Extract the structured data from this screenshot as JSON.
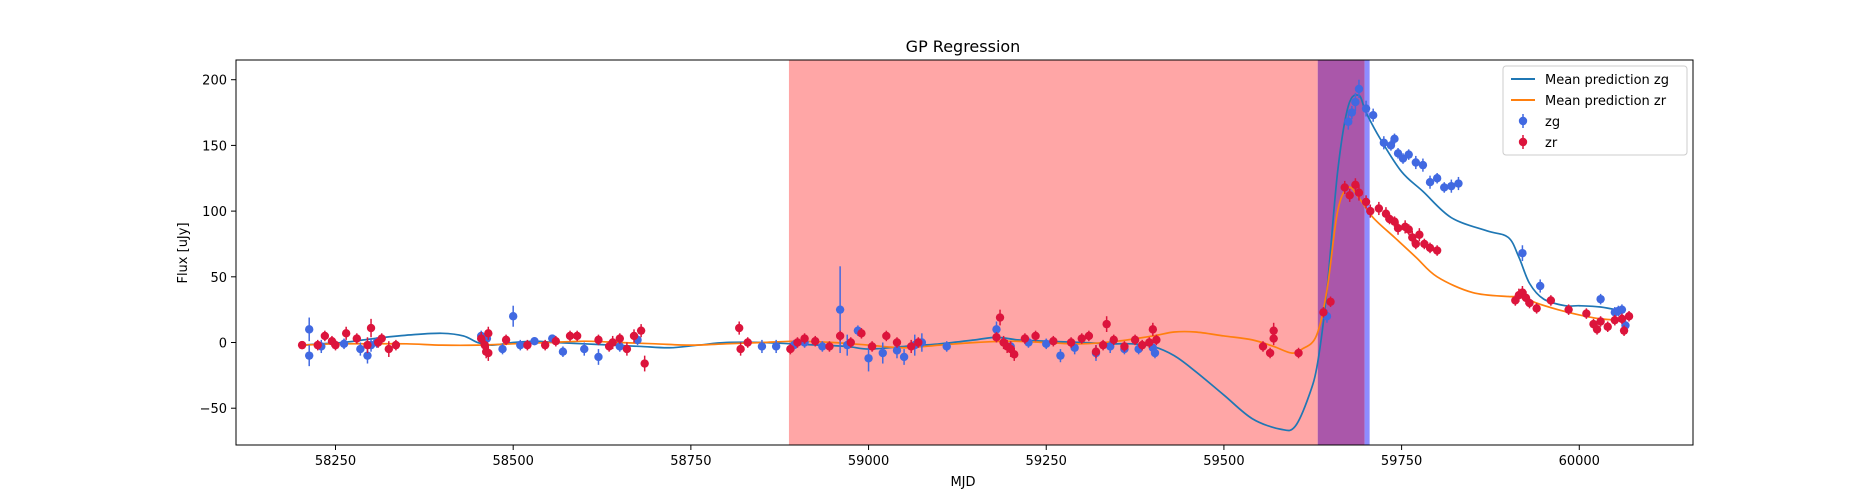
{
  "chart_data": {
    "type": "scatter",
    "title": "GP Regression",
    "xlabel": "MJD",
    "ylabel": "Flux [uJy]",
    "xlim": [
      58110,
      60160
    ],
    "ylim": [
      -78,
      215
    ],
    "xticks": [
      58250,
      58500,
      58750,
      59000,
      59250,
      59500,
      59750,
      60000
    ],
    "yticks": [
      -50,
      0,
      50,
      100,
      150,
      200
    ],
    "grid": false,
    "legend_position": "top-right",
    "shaded_regions": [
      {
        "x0": 58888,
        "x1": 59632,
        "color": "#ff0000",
        "alpha": 0.35
      },
      {
        "x0": 59632,
        "x1": 59698,
        "color": "#9b3a9b",
        "alpha": 0.85
      },
      {
        "x0": 59698,
        "x1": 59705,
        "color": "#7070ff",
        "alpha": 0.8
      }
    ],
    "lines": [
      {
        "name": "Mean prediction zg",
        "color": "#1f77b4",
        "x": [
          58203,
          58230,
          58260,
          58290,
          58320,
          58360,
          58400,
          58430,
          58450,
          58470,
          58500,
          58530,
          58560,
          58600,
          58640,
          58680,
          58720,
          58760,
          58800,
          58850,
          58890,
          58930,
          58970,
          59000,
          59050,
          59100,
          59150,
          59180,
          59210,
          59250,
          59300,
          59340,
          59370,
          59400,
          59430,
          59460,
          59500,
          59540,
          59580,
          59600,
          59620,
          59632,
          59645,
          59660,
          59675,
          59690,
          59700,
          59720,
          59750,
          59780,
          59820,
          59870,
          59900,
          59915,
          59930,
          59950,
          59980,
          60000,
          60030,
          60060
        ],
        "y": [
          -2,
          -1,
          0,
          2,
          4,
          6,
          7,
          5,
          0,
          -2,
          0,
          1,
          0,
          -1,
          -2,
          -3,
          -4,
          -2,
          0,
          0,
          -1,
          -2,
          -3,
          -5,
          -3,
          -1,
          2,
          4,
          2,
          1,
          0,
          -1,
          -1,
          -3,
          -10,
          -22,
          -40,
          -58,
          -66,
          -64,
          -40,
          -15,
          40,
          130,
          180,
          188,
          175,
          155,
          130,
          115,
          95,
          85,
          80,
          65,
          45,
          33,
          28,
          28,
          27,
          24
        ]
      },
      {
        "name": "Mean prediction zr",
        "color": "#ff7f0e",
        "x": [
          58203,
          58250,
          58300,
          58350,
          58400,
          58450,
          58500,
          58550,
          58600,
          58650,
          58700,
          58750,
          58800,
          58850,
          58900,
          58950,
          59000,
          59050,
          59100,
          59150,
          59200,
          59250,
          59300,
          59350,
          59400,
          59430,
          59460,
          59500,
          59540,
          59570,
          59595,
          59610,
          59630,
          59645,
          59660,
          59675,
          59690,
          59710,
          59740,
          59770,
          59800,
          59850,
          59900,
          59920,
          59940,
          59970,
          60000,
          60030,
          60060
        ],
        "y": [
          -2,
          -1,
          -1,
          -1,
          -2,
          -2,
          -1,
          0,
          1,
          0,
          -1,
          -2,
          -1,
          0,
          1,
          0,
          -2,
          -4,
          -2,
          0,
          1,
          0,
          -1,
          1,
          5,
          8,
          8,
          5,
          2,
          -3,
          -8,
          -5,
          5,
          40,
          100,
          118,
          110,
          95,
          80,
          65,
          50,
          38,
          35,
          35,
          30,
          25,
          21,
          18,
          17
        ]
      }
    ],
    "series": [
      {
        "name": "zg",
        "color": "#4169e1",
        "points": [
          [
            58213,
            10,
            9
          ],
          [
            58213,
            -10,
            8
          ],
          [
            58230,
            -3,
            5
          ],
          [
            58262,
            -1,
            4
          ],
          [
            58285,
            -5,
            5
          ],
          [
            58295,
            -10,
            6
          ],
          [
            58300,
            -2,
            5
          ],
          [
            58308,
            0,
            4
          ],
          [
            58455,
            5,
            4
          ],
          [
            58463,
            3,
            6
          ],
          [
            58485,
            -5,
            4
          ],
          [
            58500,
            20,
            8
          ],
          [
            58510,
            -2,
            4
          ],
          [
            58530,
            1,
            3
          ],
          [
            58555,
            3,
            3
          ],
          [
            58570,
            -7,
            4
          ],
          [
            58600,
            -5,
            5
          ],
          [
            58620,
            -11,
            6
          ],
          [
            58650,
            -3,
            4
          ],
          [
            58675,
            2,
            4
          ],
          [
            58850,
            -3,
            5
          ],
          [
            58870,
            -3,
            5
          ],
          [
            58895,
            -2,
            4
          ],
          [
            58910,
            0,
            4
          ],
          [
            58935,
            -3,
            4
          ],
          [
            58960,
            25,
            33
          ],
          [
            58970,
            -2,
            8
          ],
          [
            58985,
            9,
            4
          ],
          [
            59000,
            -12,
            10
          ],
          [
            59020,
            -8,
            8
          ],
          [
            59040,
            -6,
            6
          ],
          [
            59050,
            -11,
            6
          ],
          [
            59065,
            -2,
            8
          ],
          [
            59075,
            0,
            7
          ],
          [
            59110,
            -3,
            4
          ],
          [
            59180,
            10,
            6
          ],
          [
            59200,
            -3,
            4
          ],
          [
            59225,
            0,
            4
          ],
          [
            59250,
            -1,
            4
          ],
          [
            59270,
            -10,
            5
          ],
          [
            59290,
            -4,
            5
          ],
          [
            59320,
            -8,
            6
          ],
          [
            59340,
            -3,
            5
          ],
          [
            59360,
            -5,
            4
          ],
          [
            59380,
            -5,
            4
          ],
          [
            59400,
            -4,
            4
          ],
          [
            59403,
            -8,
            4
          ],
          [
            59645,
            20,
            5
          ],
          [
            59675,
            168,
            6
          ],
          [
            59680,
            175,
            5
          ],
          [
            59685,
            183,
            7
          ],
          [
            59690,
            193,
            7
          ],
          [
            59700,
            178,
            6
          ],
          [
            59710,
            173,
            5
          ],
          [
            59725,
            152,
            5
          ],
          [
            59735,
            150,
            4
          ],
          [
            59740,
            155,
            4
          ],
          [
            59745,
            144,
            4
          ],
          [
            59752,
            140,
            4
          ],
          [
            59760,
            143,
            4
          ],
          [
            59770,
            137,
            5
          ],
          [
            59780,
            135,
            5
          ],
          [
            59790,
            122,
            5
          ],
          [
            59800,
            125,
            4
          ],
          [
            59810,
            118,
            4
          ],
          [
            59820,
            119,
            5
          ],
          [
            59830,
            121,
            5
          ],
          [
            59920,
            68,
            6
          ],
          [
            59945,
            43,
            5
          ],
          [
            60030,
            33,
            4
          ],
          [
            60050,
            23,
            4
          ],
          [
            60055,
            24,
            4
          ],
          [
            60060,
            25,
            4
          ],
          [
            60065,
            13,
            4
          ]
        ]
      },
      {
        "name": "zr",
        "color": "#dc143c",
        "points": [
          [
            58203,
            -2,
            3
          ],
          [
            58225,
            -2,
            4
          ],
          [
            58235,
            5,
            4
          ],
          [
            58245,
            1,
            4
          ],
          [
            58250,
            -2,
            4
          ],
          [
            58265,
            7,
            5
          ],
          [
            58280,
            3,
            4
          ],
          [
            58295,
            -2,
            6
          ],
          [
            58300,
            11,
            7
          ],
          [
            58310,
            0,
            4
          ],
          [
            58315,
            3,
            4
          ],
          [
            58325,
            -5,
            6
          ],
          [
            58335,
            -2,
            4
          ],
          [
            58455,
            3,
            5
          ],
          [
            58460,
            -2,
            5
          ],
          [
            58462,
            -7,
            5
          ],
          [
            58465,
            -8,
            6
          ],
          [
            58465,
            7,
            5
          ],
          [
            58490,
            2,
            4
          ],
          [
            58520,
            -2,
            4
          ],
          [
            58545,
            -2,
            4
          ],
          [
            58560,
            1,
            4
          ],
          [
            58580,
            5,
            4
          ],
          [
            58590,
            5,
            4
          ],
          [
            58620,
            2,
            4
          ],
          [
            58635,
            -3,
            4
          ],
          [
            58640,
            0,
            5
          ],
          [
            58650,
            3,
            4
          ],
          [
            58660,
            -5,
            5
          ],
          [
            58670,
            5,
            5
          ],
          [
            58680,
            9,
            5
          ],
          [
            58685,
            -16,
            6
          ],
          [
            58818,
            11,
            5
          ],
          [
            58820,
            -5,
            5
          ],
          [
            58830,
            0,
            4
          ],
          [
            58890,
            -5,
            4
          ],
          [
            58900,
            0,
            4
          ],
          [
            58910,
            3,
            4
          ],
          [
            58925,
            1,
            4
          ],
          [
            58945,
            -3,
            4
          ],
          [
            58960,
            5,
            4
          ],
          [
            58975,
            0,
            4
          ],
          [
            58990,
            7,
            4
          ],
          [
            59005,
            -3,
            4
          ],
          [
            59025,
            5,
            4
          ],
          [
            59040,
            0,
            4
          ],
          [
            59060,
            -3,
            5
          ],
          [
            59070,
            0,
            4
          ],
          [
            59180,
            4,
            4
          ],
          [
            59185,
            19,
            6
          ],
          [
            59190,
            0,
            5
          ],
          [
            59195,
            -3,
            5
          ],
          [
            59200,
            -5,
            6
          ],
          [
            59205,
            -9,
            5
          ],
          [
            59220,
            3,
            4
          ],
          [
            59235,
            5,
            4
          ],
          [
            59260,
            1,
            4
          ],
          [
            59285,
            0,
            4
          ],
          [
            59300,
            3,
            4
          ],
          [
            59310,
            5,
            4
          ],
          [
            59320,
            -7,
            5
          ],
          [
            59330,
            -2,
            4
          ],
          [
            59335,
            14,
            6
          ],
          [
            59345,
            2,
            4
          ],
          [
            59360,
            -3,
            4
          ],
          [
            59375,
            2,
            4
          ],
          [
            59385,
            -2,
            4
          ],
          [
            59395,
            0,
            4
          ],
          [
            59400,
            10,
            5
          ],
          [
            59405,
            2,
            4
          ],
          [
            59555,
            -3,
            4
          ],
          [
            59565,
            -8,
            4
          ],
          [
            59570,
            9,
            6
          ],
          [
            59570,
            3,
            5
          ],
          [
            59605,
            -8,
            4
          ],
          [
            59640,
            23,
            4
          ],
          [
            59650,
            31,
            4
          ],
          [
            59670,
            118,
            5
          ],
          [
            59677,
            112,
            5
          ],
          [
            59685,
            120,
            5
          ],
          [
            59690,
            114,
            6
          ],
          [
            59700,
            107,
            5
          ],
          [
            59706,
            100,
            5
          ],
          [
            59718,
            102,
            5
          ],
          [
            59728,
            98,
            5
          ],
          [
            59733,
            94,
            4
          ],
          [
            59740,
            92,
            4
          ],
          [
            59745,
            87,
            5
          ],
          [
            59755,
            88,
            5
          ],
          [
            59760,
            86,
            4
          ],
          [
            59765,
            80,
            5
          ],
          [
            59770,
            75,
            4
          ],
          [
            59775,
            82,
            5
          ],
          [
            59782,
            75,
            4
          ],
          [
            59790,
            72,
            4
          ],
          [
            59800,
            70,
            4
          ],
          [
            59910,
            32,
            4
          ],
          [
            59915,
            36,
            5
          ],
          [
            59920,
            38,
            5
          ],
          [
            59925,
            34,
            5
          ],
          [
            59930,
            30,
            4
          ],
          [
            59940,
            26,
            4
          ],
          [
            59960,
            32,
            4
          ],
          [
            59985,
            25,
            4
          ],
          [
            60010,
            22,
            4
          ],
          [
            60020,
            14,
            4
          ],
          [
            60025,
            10,
            4
          ],
          [
            60030,
            16,
            4
          ],
          [
            60040,
            12,
            4
          ],
          [
            60050,
            17,
            4
          ],
          [
            60060,
            18,
            4
          ],
          [
            60063,
            9,
            4
          ],
          [
            60070,
            20,
            4
          ]
        ]
      }
    ]
  }
}
